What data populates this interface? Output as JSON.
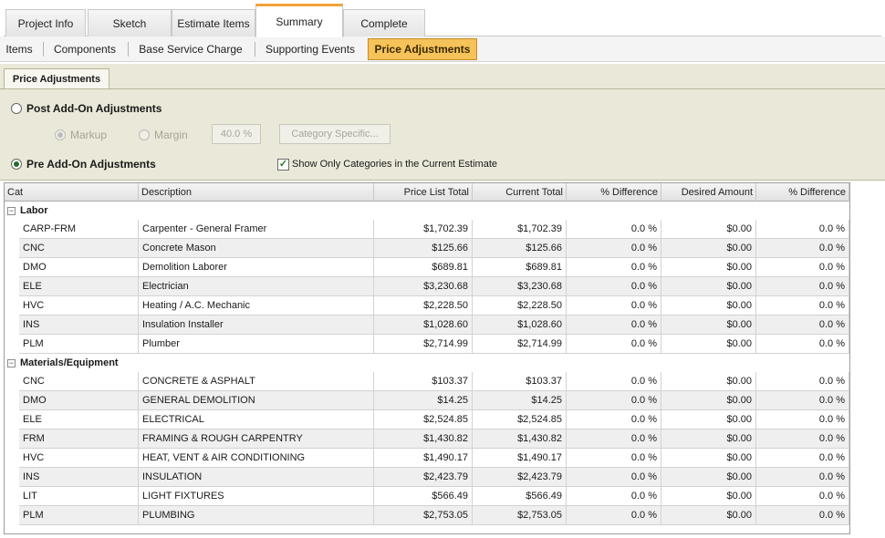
{
  "top_tabs": [
    "Project Info",
    "Sketch",
    "Estimate Items",
    "Summary",
    "Complete"
  ],
  "active_top_tab": "Summary",
  "sub_tabs": [
    "Items",
    "Components",
    "Base Service Charge",
    "Supporting Events",
    "Price Adjustments"
  ],
  "active_sub_tab": "Price Adjustments",
  "panel": {
    "tab_label": "Price Adjustments",
    "post_addon_label": "Post Add-On Adjustments",
    "post_addon_selected": false,
    "markup_label": "Markup",
    "markup_selected": true,
    "margin_label": "Margin",
    "margin_selected": false,
    "percent_value": "40.0 %",
    "category_specific_label": "Category Specific...",
    "pre_addon_label": "Pre Add-On Adjustments",
    "pre_addon_selected": true,
    "show_only_label": "Show Only Categories in the Current Estimate",
    "show_only_checked": true
  },
  "grid": {
    "headers": [
      "Cat",
      "Description",
      "Price List Total",
      "Current Total",
      "% Difference",
      "Desired Amount",
      "% Difference"
    ],
    "groups": [
      {
        "name": "Labor",
        "rows": [
          [
            "CARP-FRM",
            "Carpenter - General Framer",
            "$1,702.39",
            "$1,702.39",
            "0.0 %",
            "$0.00",
            "0.0 %"
          ],
          [
            "CNC",
            "Concrete Mason",
            "$125.66",
            "$125.66",
            "0.0 %",
            "$0.00",
            "0.0 %"
          ],
          [
            "DMO",
            "Demolition Laborer",
            "$689.81",
            "$689.81",
            "0.0 %",
            "$0.00",
            "0.0 %"
          ],
          [
            "ELE",
            "Electrician",
            "$3,230.68",
            "$3,230.68",
            "0.0 %",
            "$0.00",
            "0.0 %"
          ],
          [
            "HVC",
            "Heating / A.C. Mechanic",
            "$2,228.50",
            "$2,228.50",
            "0.0 %",
            "$0.00",
            "0.0 %"
          ],
          [
            "INS",
            "Insulation Installer",
            "$1,028.60",
            "$1,028.60",
            "0.0 %",
            "$0.00",
            "0.0 %"
          ],
          [
            "PLM",
            "Plumber",
            "$2,714.99",
            "$2,714.99",
            "0.0 %",
            "$0.00",
            "0.0 %"
          ]
        ]
      },
      {
        "name": "Materials/Equipment",
        "rows": [
          [
            "CNC",
            "CONCRETE & ASPHALT",
            "$103.37",
            "$103.37",
            "0.0 %",
            "$0.00",
            "0.0 %"
          ],
          [
            "DMO",
            "GENERAL DEMOLITION",
            "$14.25",
            "$14.25",
            "0.0 %",
            "$0.00",
            "0.0 %"
          ],
          [
            "ELE",
            "ELECTRICAL",
            "$2,524.85",
            "$2,524.85",
            "0.0 %",
            "$0.00",
            "0.0 %"
          ],
          [
            "FRM",
            "FRAMING & ROUGH CARPENTRY",
            "$1,430.82",
            "$1,430.82",
            "0.0 %",
            "$0.00",
            "0.0 %"
          ],
          [
            "HVC",
            "HEAT,  VENT & AIR CONDITIONING",
            "$1,490.17",
            "$1,490.17",
            "0.0 %",
            "$0.00",
            "0.0 %"
          ],
          [
            "INS",
            "INSULATION",
            "$2,423.79",
            "$2,423.79",
            "0.0 %",
            "$0.00",
            "0.0 %"
          ],
          [
            "LIT",
            "LIGHT FIXTURES",
            "$566.49",
            "$566.49",
            "0.0 %",
            "$0.00",
            "0.0 %"
          ],
          [
            "PLM",
            "PLUMBING",
            "$2,753.05",
            "$2,753.05",
            "0.0 %",
            "$0.00",
            "0.0 %"
          ]
        ]
      }
    ]
  }
}
